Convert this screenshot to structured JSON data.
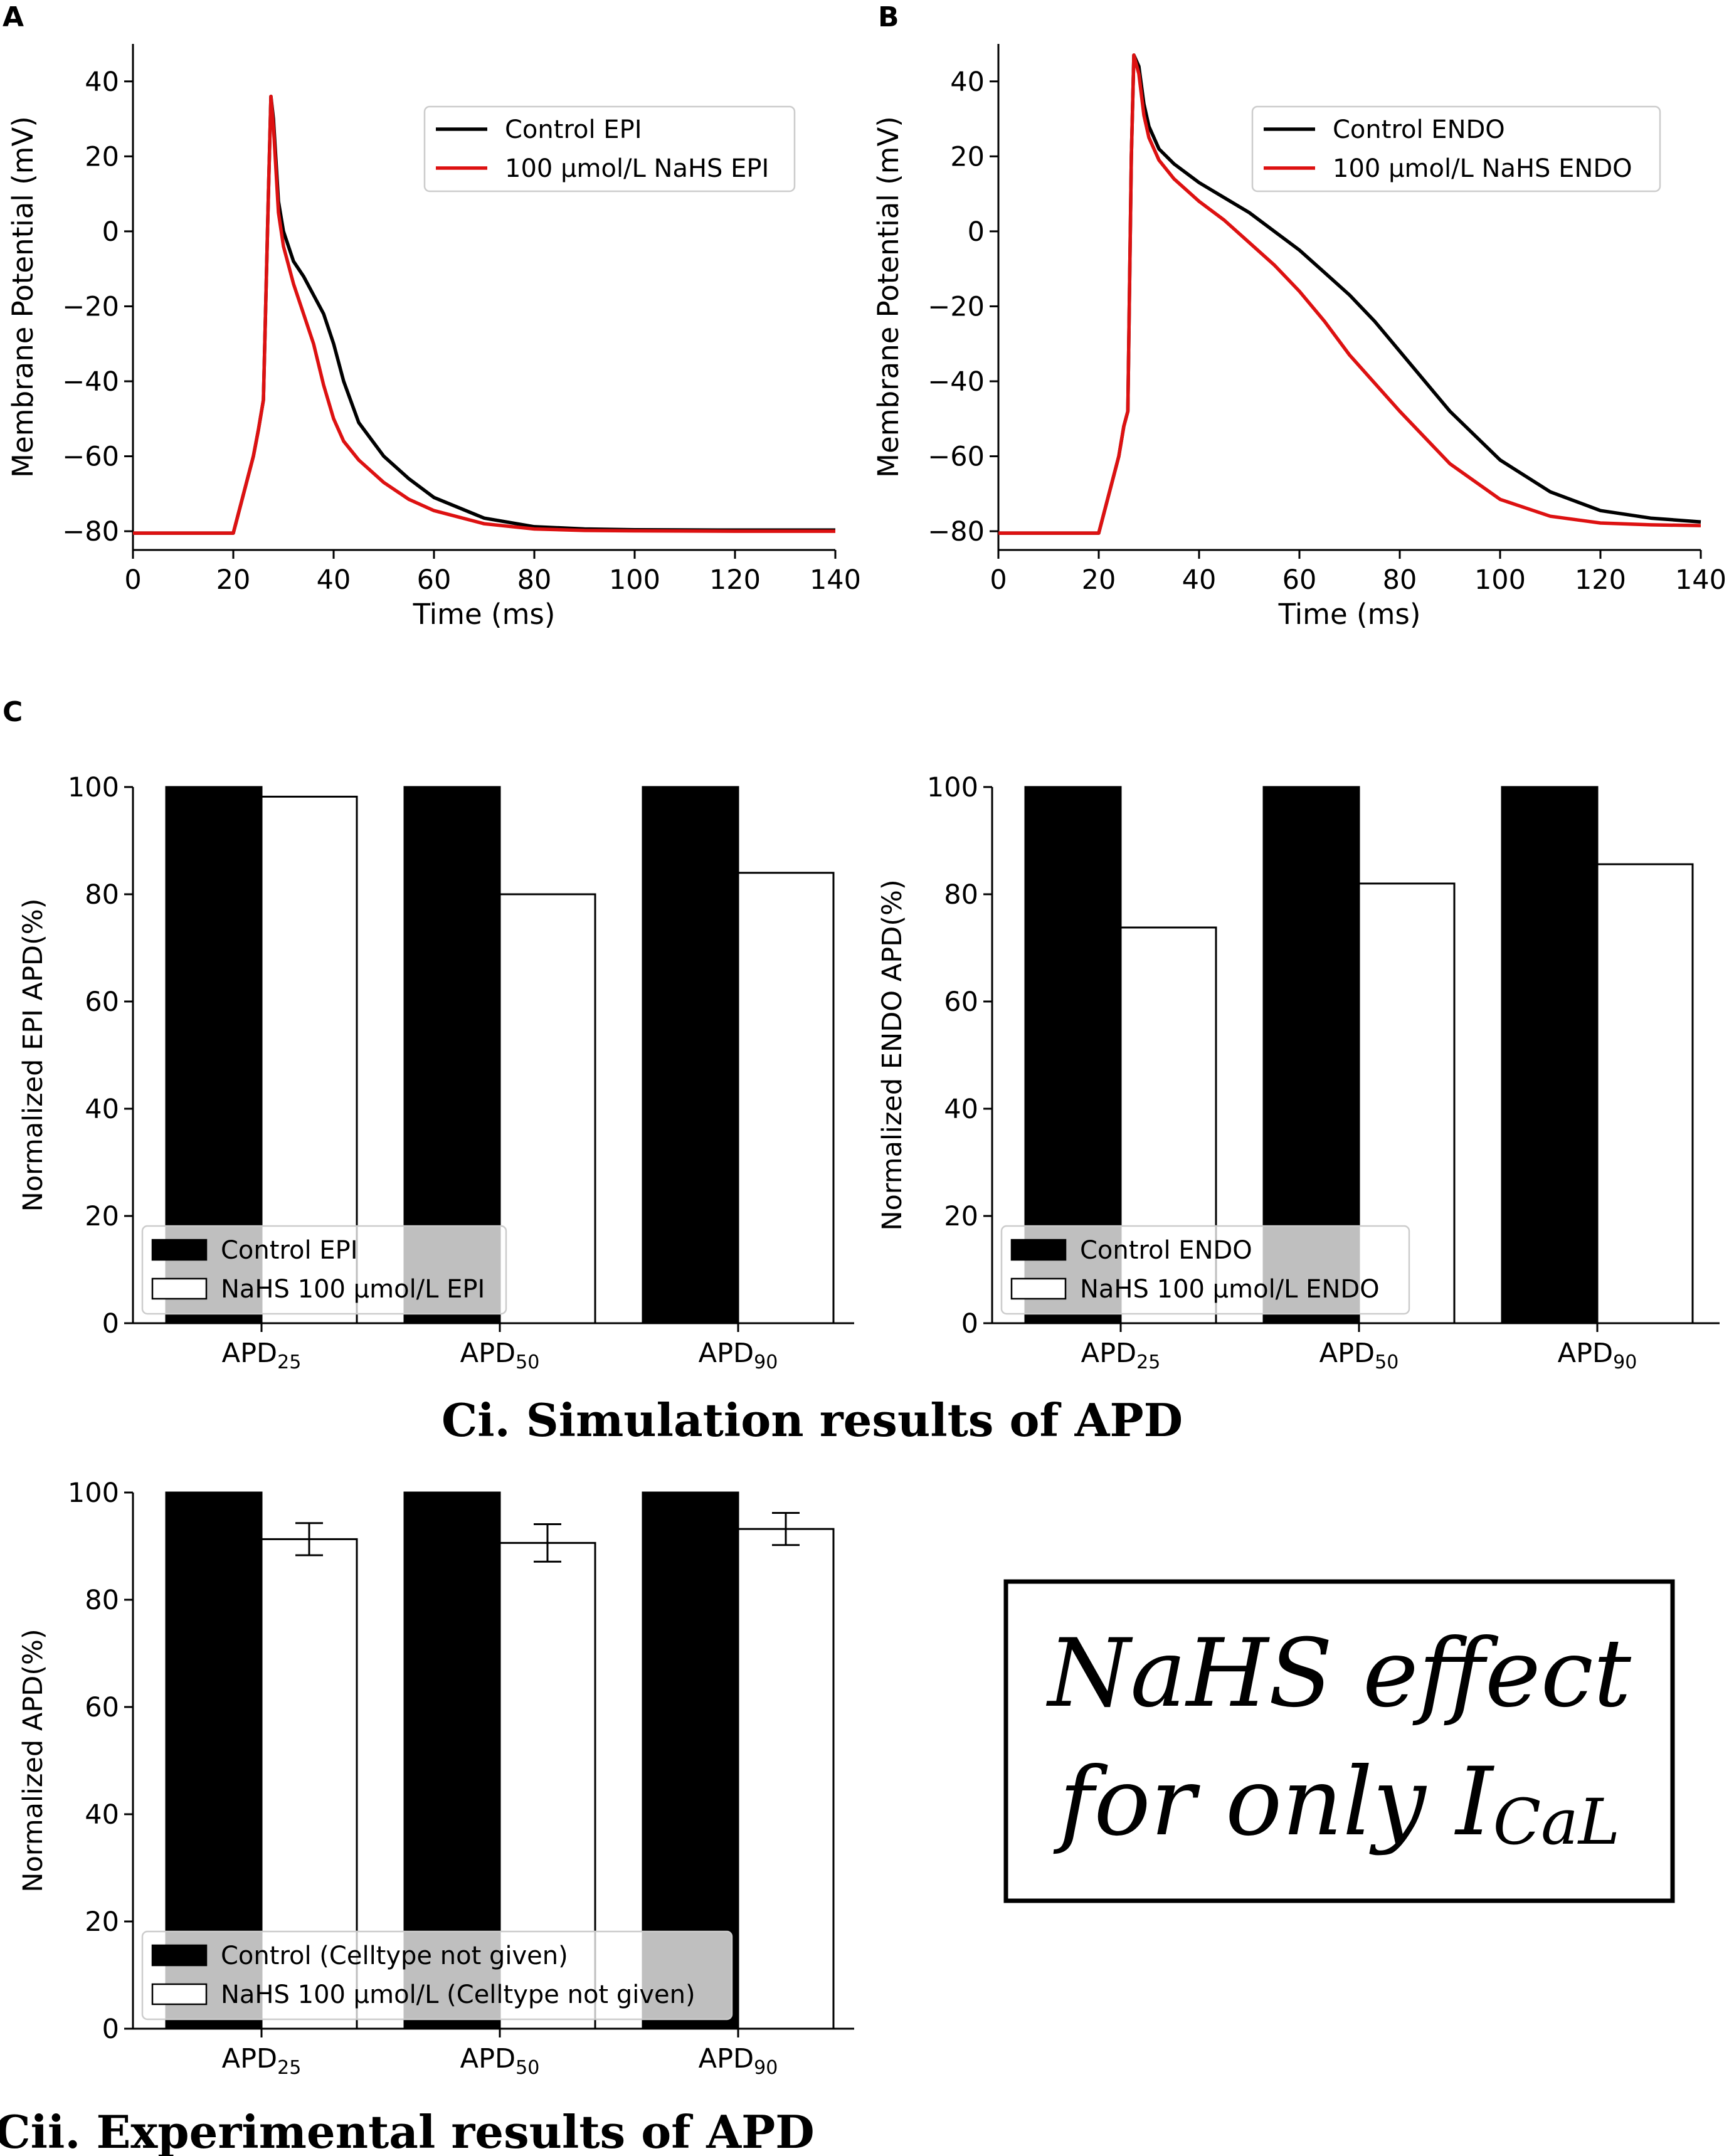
{
  "panel_labels": {
    "a": "A",
    "b": "B",
    "c": "C"
  },
  "section_titles": {
    "ci": "Ci. Simulation results of APD",
    "cii": "Cii. Experimental results of APD"
  },
  "note": {
    "line1": "NaHS effect",
    "line2_text": "for only I",
    "line2_sub": "CaL"
  },
  "colors": {
    "control": "#000000",
    "nahs": "#dd1111",
    "bar_nahs_fill": "#ffffff"
  },
  "chart_data": [
    {
      "id": "A",
      "type": "line",
      "xlabel": "Time (ms)",
      "ylabel": "Membrane Potential (mV)",
      "xlim": [
        0,
        140
      ],
      "ylim": [
        -85,
        50
      ],
      "xticks": [
        0,
        20,
        40,
        60,
        80,
        100,
        120,
        140
      ],
      "yticks": [
        -80,
        -60,
        -40,
        -20,
        0,
        20,
        40
      ],
      "legend_position": "upper-right",
      "series": [
        {
          "name": "Control EPI",
          "color": "#000000",
          "x": [
            0,
            20,
            24,
            25,
            26,
            27,
            27.5,
            28,
            29,
            30,
            32,
            34,
            36,
            38,
            40,
            42,
            45,
            50,
            55,
            60,
            70,
            80,
            90,
            100,
            120,
            140
          ],
          "y": [
            -80.5,
            -80.5,
            -60,
            -53,
            -45,
            10,
            36,
            30,
            8,
            0,
            -8,
            -12,
            -17,
            -22,
            -30,
            -40,
            -51,
            -60,
            -66,
            -71,
            -76.5,
            -78.8,
            -79.4,
            -79.6,
            -79.7,
            -79.7
          ]
        },
        {
          "name": "100 μmol/L NaHS EPI",
          "color": "#dd1111",
          "x": [
            0,
            20,
            24,
            25,
            26,
            27,
            27.5,
            28,
            29,
            30,
            32,
            34,
            36,
            38,
            40,
            42,
            45,
            50,
            55,
            60,
            70,
            80,
            90,
            100,
            120,
            140
          ],
          "y": [
            -80.5,
            -80.5,
            -60,
            -53,
            -45,
            10,
            36,
            28,
            5,
            -4,
            -14,
            -22,
            -30,
            -41,
            -50,
            -56,
            -61,
            -67,
            -71.5,
            -74.5,
            -78,
            -79.4,
            -79.8,
            -79.9,
            -80,
            -80
          ]
        }
      ]
    },
    {
      "id": "B",
      "type": "line",
      "xlabel": "Time (ms)",
      "ylabel": "Membrane Potential (mV)",
      "xlim": [
        0,
        140
      ],
      "ylim": [
        -85,
        50
      ],
      "xticks": [
        0,
        20,
        40,
        60,
        80,
        100,
        120,
        140
      ],
      "yticks": [
        -80,
        -60,
        -40,
        -20,
        0,
        20,
        40
      ],
      "legend_position": "upper-right",
      "series": [
        {
          "name": "Control ENDO",
          "color": "#000000",
          "x": [
            0,
            20,
            24,
            25,
            25.8,
            26.5,
            27,
            28,
            29,
            30,
            32,
            35,
            40,
            45,
            50,
            55,
            60,
            65,
            70,
            75,
            80,
            90,
            100,
            110,
            120,
            130,
            140
          ],
          "y": [
            -80.5,
            -80.5,
            -60,
            -52,
            -48,
            20,
            47,
            44,
            34,
            28,
            22,
            18,
            13,
            9,
            5,
            0,
            -5,
            -11,
            -17,
            -24,
            -32,
            -48,
            -61,
            -69.5,
            -74.5,
            -76.5,
            -77.5
          ]
        },
        {
          "name": "100 μmol/L NaHS ENDO",
          "color": "#dd1111",
          "x": [
            0,
            20,
            24,
            25,
            25.8,
            26.5,
            27,
            28,
            29,
            30,
            32,
            35,
            40,
            45,
            50,
            55,
            60,
            65,
            70,
            80,
            90,
            100,
            110,
            120,
            130,
            140
          ],
          "y": [
            -80.5,
            -80.5,
            -60,
            -52,
            -48,
            20,
            47,
            42,
            31,
            25,
            19,
            14,
            8,
            3,
            -3,
            -9,
            -16,
            -24,
            -33,
            -48,
            -62,
            -71.5,
            -76,
            -77.8,
            -78.3,
            -78.5
          ]
        }
      ]
    },
    {
      "id": "Ci-left",
      "type": "bar",
      "ylabel": "Normalized EPI APD(%)",
      "categories": [
        {
          "base": "APD",
          "sub": "25"
        },
        {
          "base": "APD",
          "sub": "50"
        },
        {
          "base": "APD",
          "sub": "90"
        }
      ],
      "ylim": [
        0,
        100
      ],
      "yticks": [
        0,
        20,
        40,
        60,
        80,
        100
      ],
      "legend_position": "lower-left",
      "series": [
        {
          "name": "Control EPI",
          "fill": "#000000",
          "values": [
            100,
            100,
            100
          ]
        },
        {
          "name": "NaHS 100 μmol/L EPI",
          "fill": "#ffffff",
          "values": [
            98.2,
            80.0,
            84.0
          ]
        }
      ]
    },
    {
      "id": "Ci-right",
      "type": "bar",
      "ylabel": "Normalized ENDO APD(%)",
      "categories": [
        {
          "base": "APD",
          "sub": "25"
        },
        {
          "base": "APD",
          "sub": "50"
        },
        {
          "base": "APD",
          "sub": "90"
        }
      ],
      "ylim": [
        0,
        100
      ],
      "yticks": [
        0,
        20,
        40,
        60,
        80,
        100
      ],
      "legend_position": "lower-left",
      "series": [
        {
          "name": "Control ENDO",
          "fill": "#000000",
          "values": [
            100,
            100,
            100
          ]
        },
        {
          "name": "NaHS 100 μmol/L ENDO",
          "fill": "#ffffff",
          "values": [
            73.8,
            82.0,
            85.6
          ]
        }
      ]
    },
    {
      "id": "Cii",
      "type": "bar",
      "ylabel": "Normalized APD(%)",
      "categories": [
        {
          "base": "APD",
          "sub": "25"
        },
        {
          "base": "APD",
          "sub": "50"
        },
        {
          "base": "APD",
          "sub": "90"
        }
      ],
      "ylim": [
        0,
        100
      ],
      "yticks": [
        0,
        20,
        40,
        60,
        80,
        100
      ],
      "legend_position": "lower-left",
      "series": [
        {
          "name": "Control (Celltype not given)",
          "fill": "#000000",
          "values": [
            100,
            100,
            100
          ]
        },
        {
          "name": "NaHS 100 μmol/L (Celltype not given)",
          "fill": "#ffffff",
          "values": [
            91.3,
            90.6,
            93.2
          ],
          "errors": [
            3.0,
            3.5,
            3.0
          ]
        }
      ]
    }
  ]
}
